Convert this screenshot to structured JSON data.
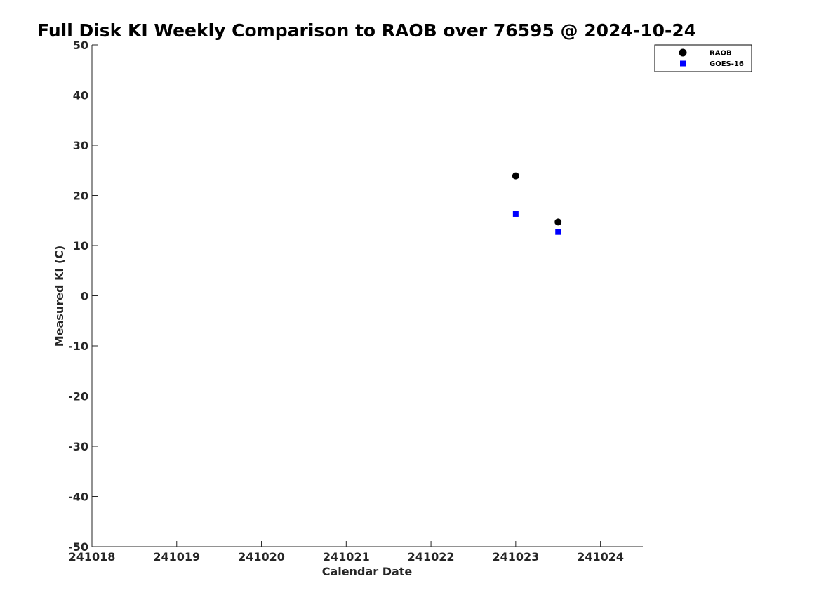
{
  "chart_data": {
    "type": "scatter",
    "title": "Full Disk KI Weekly Comparison to RAOB over 76595 @ 2024-10-24",
    "xlabel": "Calendar Date",
    "ylabel": "Measured KI (C)",
    "xlim": [
      241018,
      241024.5
    ],
    "ylim": [
      -50,
      50
    ],
    "xticks": [
      241018,
      241019,
      241020,
      241021,
      241022,
      241023,
      241024
    ],
    "xtick_labels": [
      "241018",
      "241019",
      "241020",
      "241021",
      "241022",
      "241023",
      "241024"
    ],
    "yticks": [
      -50,
      -40,
      -30,
      -20,
      -10,
      0,
      10,
      20,
      30,
      40,
      50
    ],
    "ytick_labels": [
      "-50",
      "-40",
      "-30",
      "-20",
      "-10",
      "0",
      "10",
      "20",
      "30",
      "40",
      "50"
    ],
    "grid": false,
    "legend_position": "top-right",
    "series": [
      {
        "name": "RAOB",
        "marker": "circle",
        "color": "#000000",
        "x": [
          241023,
          241023.5
        ],
        "y": [
          23.9,
          14.7
        ]
      },
      {
        "name": "GOES-16",
        "marker": "square",
        "color": "#0000ff",
        "x": [
          241023,
          241023.5
        ],
        "y": [
          16.3,
          12.7
        ]
      }
    ]
  }
}
